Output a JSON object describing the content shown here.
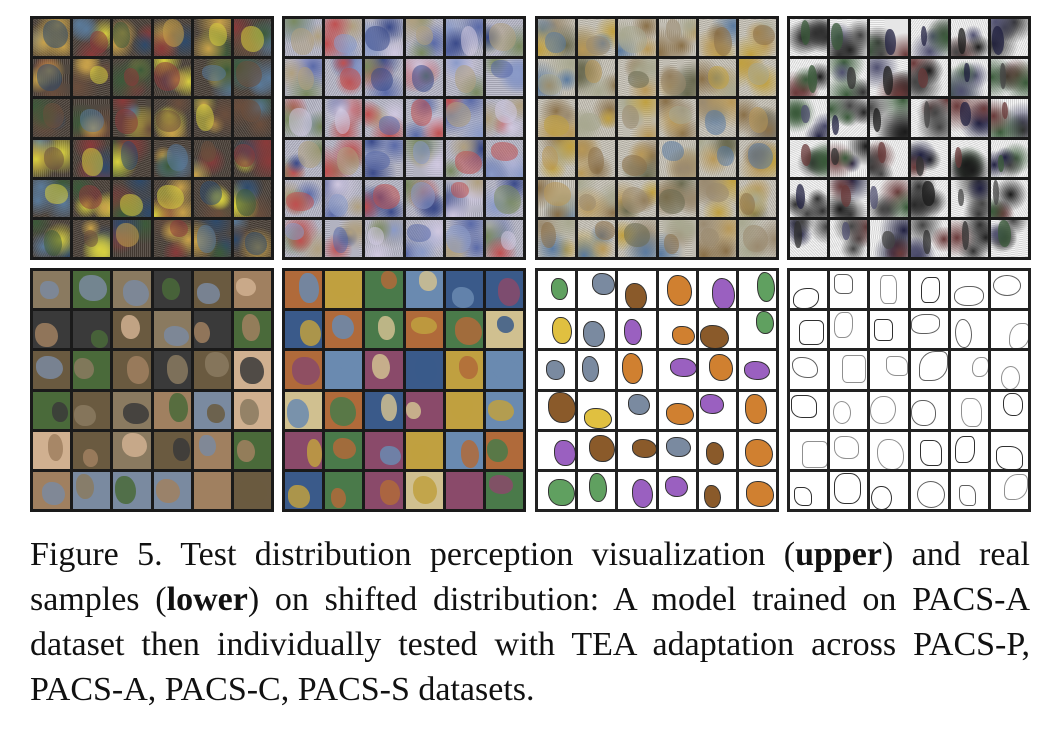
{
  "figure": {
    "rows": [
      {
        "row_name": "upper",
        "panels": [
          {
            "id": "p-upper",
            "style": "noisy-dark",
            "palette": [
              "#6b4e3d",
              "#3c5a3a",
              "#8a3a3a",
              "#2e4a6b",
              "#c9a24a",
              "#5a7a9a",
              "#d8d040"
            ]
          },
          {
            "id": "a-upper",
            "style": "noisy-light",
            "palette": [
              "#5a6aa8",
              "#8a9ac8",
              "#b0a080",
              "#c05050",
              "#7a8a60",
              "#3a4a8a",
              "#d0c8e0"
            ]
          },
          {
            "id": "c-upper",
            "style": "noisy-pale",
            "palette": [
              "#8a7048",
              "#b89858",
              "#6a6a50",
              "#a8a890",
              "#5a7aa0",
              "#c0a040",
              "#9a8a70"
            ]
          },
          {
            "id": "s-upper",
            "style": "noisy-white",
            "palette": [
              "#1a1a1a",
              "#303030",
              "#505070",
              "#6a3a3a",
              "#3a5a3a",
              "#202040",
              "#444444"
            ]
          }
        ]
      },
      {
        "row_name": "lower",
        "panels": [
          {
            "id": "p-lower",
            "style": "photo",
            "palette": [
              "#6a5a40",
              "#4a6a3a",
              "#8a7a60",
              "#d0b090",
              "#3a3a3a",
              "#7a8aa0",
              "#a08060"
            ]
          },
          {
            "id": "a-lower",
            "style": "art",
            "palette": [
              "#6a8ab0",
              "#b06a3a",
              "#d0c090",
              "#4a7a4a",
              "#8a4a6a",
              "#c0a040",
              "#3a5a8a"
            ]
          },
          {
            "id": "c-lower",
            "style": "cartoon",
            "palette": [
              "#ffffff",
              "#8a5a2a",
              "#d08030",
              "#9a60c0",
              "#60a060",
              "#e0c040",
              "#7a8aa0"
            ]
          },
          {
            "id": "s-lower",
            "style": "sketch",
            "palette": [
              "#ffffff",
              "#303030",
              "#606060",
              "#909090"
            ]
          }
        ]
      }
    ]
  },
  "caption": {
    "prefix": "Figure 5.  Test distribution perception visualization (",
    "bold1": "upper",
    "mid1": ") and real samples (",
    "bold2": "lower",
    "rest": ") on shifted distribution:  A model trained on PACS-A dataset then individually tested with TEA adaptation across PACS-P, PACS-A, PACS-C, PACS-S datasets."
  }
}
